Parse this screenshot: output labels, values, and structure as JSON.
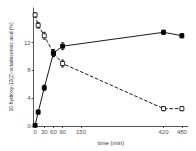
{
  "chart_data": {
    "type": "line",
    "x_label": "time (min)",
    "y_label": "10-hydroxy-12(Z)-octadecenoic acid (%)",
    "xlim": [
      -5,
      500
    ],
    "xticks": [
      0,
      30,
      60,
      90,
      150,
      420,
      480
    ],
    "ylim": [
      0,
      17
    ],
    "yticks": [
      0,
      4,
      8,
      12
    ],
    "grid": false,
    "series": [
      {
        "x": [
          0,
          10,
          30,
          60,
          90,
          420,
          480
        ],
        "values": [
          16.0,
          14.5,
          13.0,
          10.5,
          9.0,
          2.5,
          2.5
        ],
        "errors": [
          0.3,
          0.4,
          0.5,
          0.5,
          0.5,
          0.3,
          0.3
        ],
        "color": "#000000",
        "marker": "square_open",
        "line_style": "dashed"
      },
      {
        "x": [
          0,
          10,
          30,
          60,
          90,
          420,
          480
        ],
        "values": [
          0.1,
          2.0,
          5.5,
          10.5,
          11.5,
          13.5,
          13.0
        ],
        "errors": [
          0.1,
          0.3,
          0.4,
          0.5,
          0.5,
          0.3,
          0.3
        ],
        "color": "#000000",
        "marker": "square",
        "line_style": "solid"
      }
    ]
  }
}
